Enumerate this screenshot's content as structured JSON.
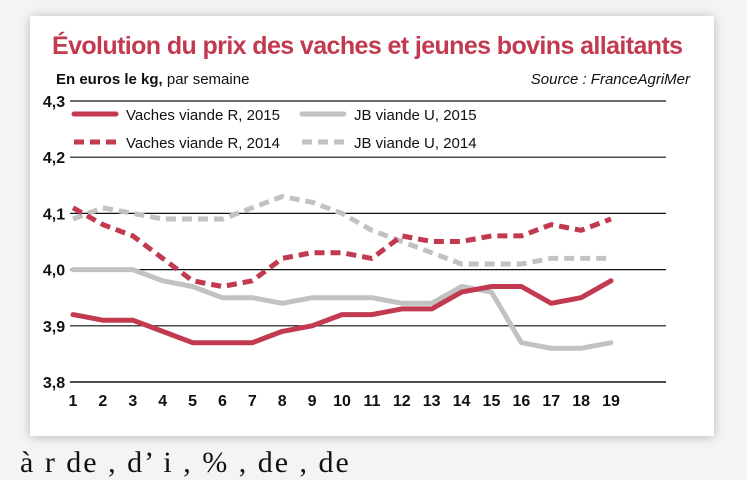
{
  "title": "Évolution du prix des vaches et jeunes bovins allaitants",
  "subtitle_bold": "En euros le kg,",
  "subtitle_rest": " par semaine",
  "source": "Source : FranceAgriMer",
  "footer_partial": "à   r   de   ,   d’   i   ,   %   ,   de   ,   de",
  "colors": {
    "red": "#c23a50",
    "gray": "#c2c2c2",
    "grid": "#111111"
  },
  "chart_data": {
    "type": "line",
    "x": [
      1,
      2,
      3,
      4,
      5,
      6,
      7,
      8,
      9,
      10,
      11,
      12,
      13,
      14,
      15,
      16,
      17,
      18,
      19
    ],
    "xlabel": "",
    "ylabel": "",
    "ylim": [
      3.8,
      4.3
    ],
    "yticks": [
      3.8,
      3.9,
      4.0,
      4.1,
      4.2,
      4.3
    ],
    "ytick_labels": [
      "3,8",
      "3,9",
      "4,0",
      "4,1",
      "4,2",
      "4,3"
    ],
    "grid": true,
    "legend_position": "top-left",
    "series": [
      {
        "name": "Vaches viande R, 2015",
        "color": "#c23a50",
        "dash": false,
        "values": [
          3.92,
          3.91,
          3.91,
          3.89,
          3.87,
          3.87,
          3.87,
          3.89,
          3.9,
          3.92,
          3.92,
          3.93,
          3.93,
          3.96,
          3.97,
          3.97,
          3.94,
          3.95,
          3.98
        ]
      },
      {
        "name": "Vaches viande R, 2014",
        "color": "#c23a50",
        "dash": true,
        "values": [
          4.11,
          4.08,
          4.06,
          4.02,
          3.98,
          3.97,
          3.98,
          4.02,
          4.03,
          4.03,
          4.02,
          4.06,
          4.05,
          4.05,
          4.06,
          4.06,
          4.08,
          4.07,
          4.09
        ]
      },
      {
        "name": "JB viande U, 2015",
        "color": "#c2c2c2",
        "dash": false,
        "values": [
          4.0,
          4.0,
          4.0,
          3.98,
          3.97,
          3.95,
          3.95,
          3.94,
          3.95,
          3.95,
          3.95,
          3.94,
          3.94,
          3.97,
          3.96,
          3.87,
          3.86,
          3.86,
          3.87
        ]
      },
      {
        "name": "JB viande U, 2014",
        "color": "#c2c2c2",
        "dash": true,
        "values": [
          4.09,
          4.11,
          4.1,
          4.09,
          4.09,
          4.09,
          4.11,
          4.13,
          4.12,
          4.1,
          4.07,
          4.05,
          4.03,
          4.01,
          4.01,
          4.01,
          4.02,
          4.02,
          4.02
        ]
      }
    ]
  }
}
